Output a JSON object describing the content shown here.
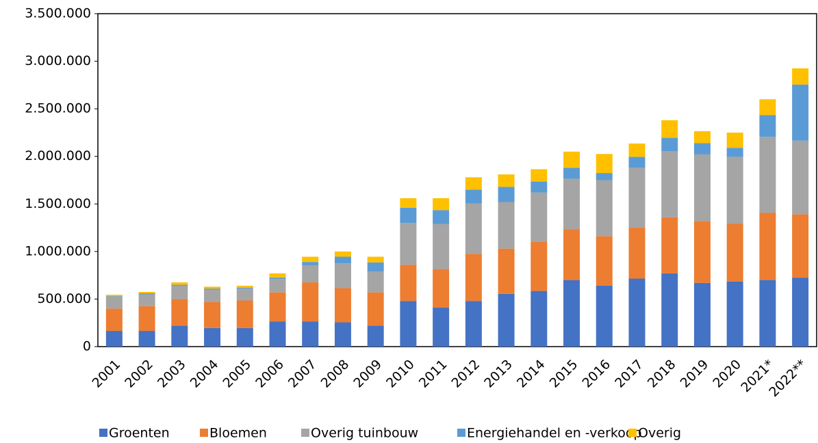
{
  "chart_data": {
    "type": "bar",
    "stacked": true,
    "categories": [
      "2001",
      "2002",
      "2003",
      "2004",
      "2005",
      "2006",
      "2007",
      "2008",
      "2009",
      "2010",
      "2011",
      "2012",
      "2013",
      "2014",
      "2015",
      "2016",
      "2017",
      "2018",
      "2019",
      "2020",
      "2021*",
      "2022**"
    ],
    "series": [
      {
        "name": "Groenten",
        "color": "#4472c4",
        "values": [
          165000,
          165000,
          220000,
          195000,
          195000,
          265000,
          265000,
          255000,
          220000,
          480000,
          410000,
          480000,
          555000,
          585000,
          700000,
          640000,
          715000,
          770000,
          670000,
          685000,
          700000,
          725000
        ]
      },
      {
        "name": "Bloemen",
        "color": "#ed7d31",
        "values": [
          235000,
          260000,
          280000,
          275000,
          290000,
          305000,
          410000,
          360000,
          350000,
          380000,
          405000,
          495000,
          475000,
          520000,
          535000,
          520000,
          535000,
          590000,
          650000,
          605000,
          705000,
          665000
        ]
      },
      {
        "name": "Overig tuinbouw",
        "color": "#a5a5a5",
        "values": [
          120000,
          125000,
          140000,
          130000,
          125000,
          140000,
          180000,
          260000,
          220000,
          440000,
          475000,
          530000,
          490000,
          515000,
          530000,
          590000,
          630000,
          695000,
          700000,
          705000,
          800000,
          775000
        ]
      },
      {
        "name": "Energiehandel en -verkoop",
        "color": "#5b9bd5",
        "values": [
          10000,
          10000,
          10000,
          10000,
          10000,
          15000,
          35000,
          70000,
          95000,
          160000,
          145000,
          145000,
          160000,
          115000,
          115000,
          75000,
          115000,
          140000,
          120000,
          95000,
          230000,
          590000
        ]
      },
      {
        "name": "Overig",
        "color": "#ffc000",
        "values": [
          15000,
          15000,
          25000,
          20000,
          20000,
          45000,
          55000,
          55000,
          60000,
          100000,
          125000,
          130000,
          130000,
          130000,
          170000,
          200000,
          140000,
          185000,
          125000,
          160000,
          165000,
          170000
        ]
      }
    ],
    "ylim": [
      0,
      3500000
    ],
    "yticks": [
      0,
      {
        "value": 500000,
        "label": "500.000"
      },
      {
        "value": 1000000,
        "label": "1.000.000"
      },
      {
        "value": 1500000,
        "label": "1.500.000"
      },
      {
        "value": 2000000,
        "label": "2.000.000"
      },
      {
        "value": 2500000,
        "label": "2.500.000"
      },
      {
        "value": 3000000,
        "label": "3.000.000"
      },
      {
        "value": 3500000,
        "label": "3.500.000"
      }
    ],
    "grid": false,
    "legend": "bottom"
  }
}
